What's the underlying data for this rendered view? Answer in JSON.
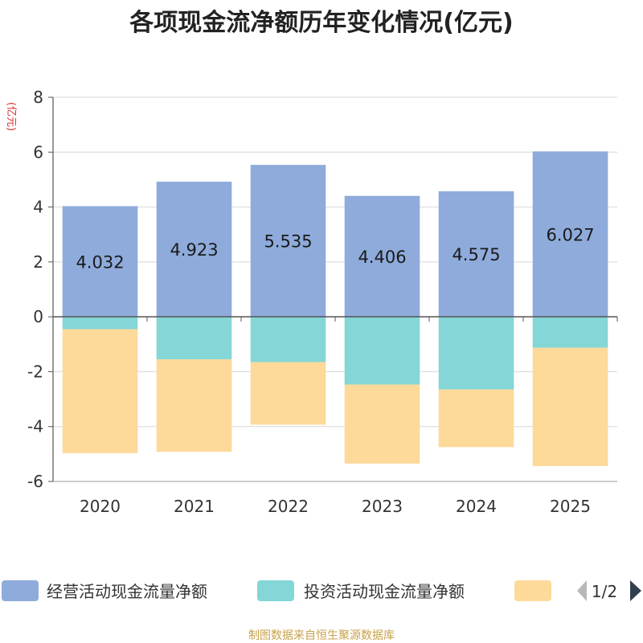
{
  "chart_data": {
    "type": "bar",
    "stacked": true,
    "title": "各项现金流净额历年变化情况(亿元)",
    "ylabel": "(亿元)",
    "categories": [
      "2020",
      "2021",
      "2022",
      "2023",
      "2024",
      "2025"
    ],
    "ylim": [
      -6,
      8
    ],
    "yticks": [
      "8",
      "6",
      "4",
      "2",
      "0",
      "-2",
      "-4",
      "-6"
    ],
    "series": [
      {
        "name": "经营活动现金流量净额",
        "color": "#8eabdb",
        "values": [
          4.032,
          4.923,
          5.535,
          4.406,
          4.575,
          6.027
        ],
        "labels": [
          "4.032",
          "4.923",
          "5.535",
          "4.406",
          "4.575",
          "6.027"
        ]
      },
      {
        "name": "投资活动现金流量净额",
        "color": "#85d6d6",
        "values": [
          -0.45,
          -1.55,
          -1.65,
          -2.47,
          -2.65,
          -1.13
        ]
      },
      {
        "name": "",
        "color": "#fdd99a",
        "values": [
          -4.52,
          -3.37,
          -2.28,
          -2.88,
          -2.1,
          -4.31
        ]
      }
    ]
  },
  "legend": {
    "items": [
      "经营活动现金流量净额",
      "投资活动现金流量净额",
      ""
    ],
    "page": "1/2"
  },
  "source": "制图数据来自恒生聚源数据库"
}
